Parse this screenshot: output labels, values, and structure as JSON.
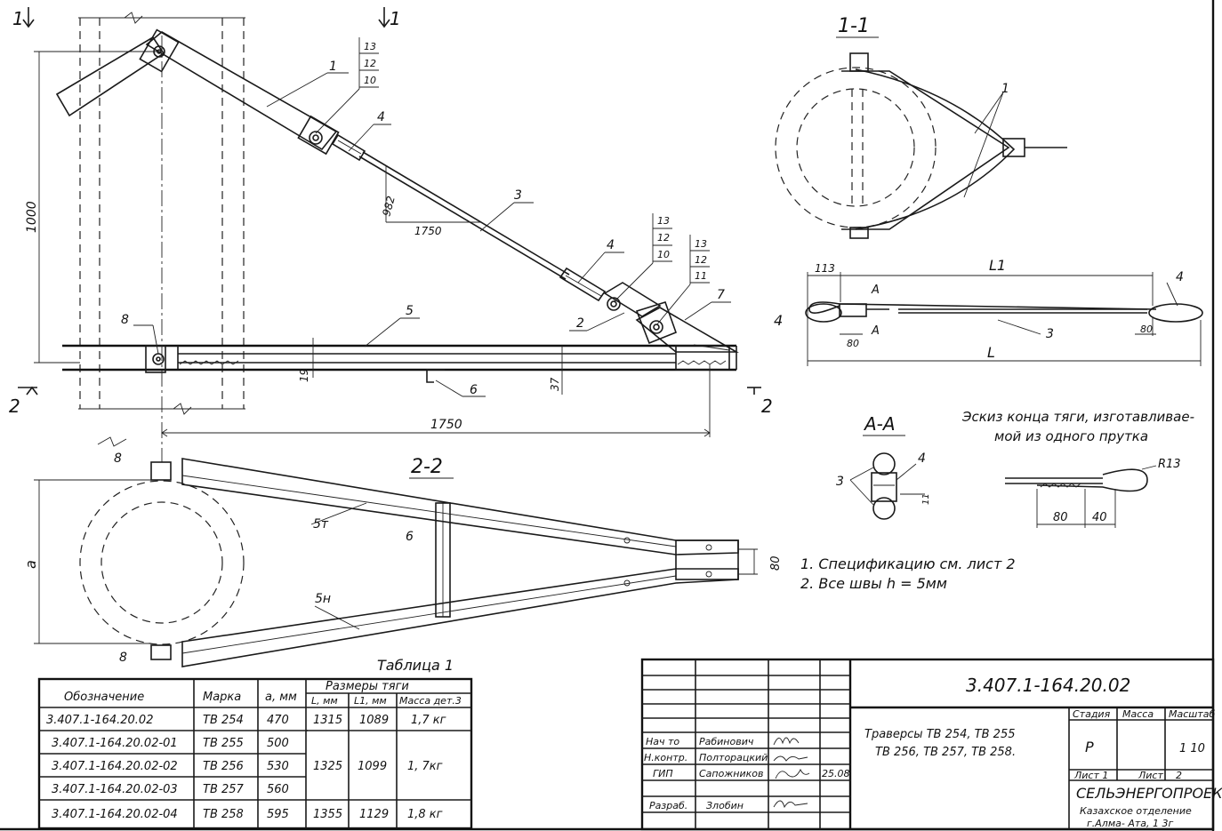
{
  "drawing": {
    "section_1_1": "1-1",
    "section_2_2": "2-2",
    "section_a_a": "А-А",
    "cut_1": "1",
    "cut_2": "2",
    "dims": {
      "h1000": "1000",
      "d982": "982",
      "d1750_upper": "1750",
      "d1750_lower": "1750",
      "d19": "19",
      "d37": "37",
      "d113": "113",
      "dL1": "L1",
      "dL": "L",
      "d80_left": "80",
      "d80_right": "80",
      "d80_side": "80",
      "d80_end": "80",
      "d40": "40",
      "r13": "R13",
      "d11": "11",
      "a": "a",
      "A": "A"
    },
    "positions": {
      "p1": "1",
      "p2": "2",
      "p3": "3",
      "p4": "4",
      "p5": "5",
      "p6": "6",
      "p7": "7",
      "p8": "8",
      "p10": "10",
      "p11": "11",
      "p12": "12",
      "p13": "13",
      "p5t": "5т",
      "p5n": "5н"
    },
    "sketch_caption_line1": "Эскиз конца тяги, изготавливае-",
    "sketch_caption_line2": "мой из одного прутка",
    "notes": [
      "1. Спецификацию     см. лист 2",
      "2. Все   швы    h = 5мм"
    ]
  },
  "table": {
    "title": "Таблица 1",
    "headers": {
      "designation": "Обозначение",
      "mark": "Марка",
      "a_mm": "a, мм",
      "rod_dims": "Размеры    тяги",
      "L_mm": "L, мм",
      "L1_mm": "L1, мм",
      "mass": "Масса дет.3"
    },
    "rows": [
      {
        "designation": "3.407.1-164.20.02",
        "mark": "ТВ 254",
        "a": "470",
        "L": "1315",
        "L1": "1089",
        "mass": "1,7 кг"
      },
      {
        "designation": "3.407.1-164.20.02-01",
        "mark": "ТВ 255",
        "a": "500",
        "L": "",
        "L1": "",
        "mass": ""
      },
      {
        "designation": "3.407.1-164.20.02-02",
        "mark": "ТВ 256",
        "a": "530",
        "L": "1325",
        "L1": "1099",
        "mass": "1, 7кг"
      },
      {
        "designation": "3.407.1-164.20.02-03",
        "mark": "ТВ 257",
        "a": "560",
        "L": "",
        "L1": "",
        "mass": ""
      },
      {
        "designation": "3.407.1-164.20.02-04",
        "mark": "ТВ 258",
        "a": "595",
        "L": "1355",
        "L1": "1129",
        "mass": "1,8 кг"
      }
    ]
  },
  "title_block": {
    "doc_number": "3.407.1-164.20.02",
    "name_line1": "Траверсы  ТВ 254,  ТВ 255",
    "name_line2": "ТВ 256,  ТВ 257,  ТВ 258.",
    "stage_label": "Стадия",
    "mass_label": "Масса",
    "scale_label": "Масштаб",
    "stage": "Р",
    "scale": "1 10",
    "sheet_label": "Лист 1",
    "sheets_label": "Лист",
    "sheets_count": "2",
    "org_line1": "СЕЛЬЭНЕРГОПРОЕКТ",
    "org_line2": "Казахское отделение",
    "org_line3": "г.Алма- Ата, 1 3г",
    "date": "25.08",
    "people": [
      {
        "role": "Нач то",
        "name": "Рабинович"
      },
      {
        "role": "Н.контр.",
        "name": "Полторацкий"
      },
      {
        "role": "ГИП",
        "name": "Сапожников"
      },
      {
        "role": "Разраб.",
        "name": "Злобин"
      }
    ]
  }
}
